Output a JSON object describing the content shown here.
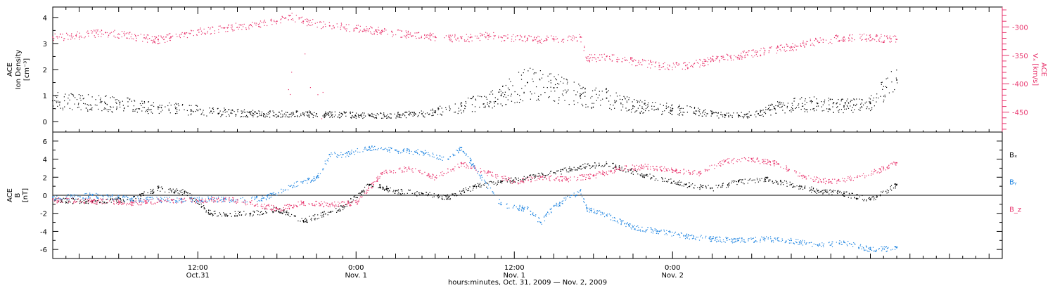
{
  "chart_data": [
    {
      "type": "scatter",
      "title": "",
      "ylabel_left": [
        "ACE",
        "Ion Density",
        "[cm⁻³]"
      ],
      "ylabel_right": [
        "ACE",
        "Vₓ [km/s]"
      ],
      "ylim_left": [
        -0.4,
        4.4
      ],
      "yticks_left": [
        "0",
        "1",
        "2",
        "3",
        "4"
      ],
      "ylim_right": [
        -485,
        -265
      ],
      "yticks_right": [
        "-300",
        "-350",
        "-400",
        "-450"
      ],
      "colors": {
        "density": "#000000",
        "vx": "#e8336c"
      },
      "series": [
        {
          "name": "",
          "key": "density",
          "x": [
            0,
            4,
            8,
            12,
            16,
            20,
            24,
            28,
            31,
            34,
            36,
            38,
            40,
            42,
            44,
            47,
            50,
            51,
            52,
            53.5,
            55,
            58,
            60,
            62,
            64
          ],
          "y": [
            0.8,
            0.7,
            0.55,
            0.4,
            0.3,
            0.3,
            0.25,
            0.3,
            0.6,
            1.0,
            1.5,
            1.3,
            1.0,
            0.9,
            0.6,
            0.5,
            0.3,
            0.25,
            0.25,
            0.3,
            0.6,
            0.7,
            0.6,
            0.7,
            1.6
          ]
        },
        {
          "name": "",
          "key": "vx",
          "x": [
            0,
            4,
            8,
            10,
            13,
            15,
            17,
            18,
            19,
            21,
            23,
            25,
            27,
            29,
            31,
            33,
            34,
            36,
            38,
            40,
            40.5,
            42,
            44,
            46,
            48,
            50,
            52,
            54,
            56,
            58,
            60,
            62,
            64
          ],
          "y": [
            -318,
            -310,
            -322,
            -312,
            -302,
            -296,
            -290,
            -280,
            -290,
            -298,
            -302,
            -308,
            -313,
            -318,
            -320,
            -315,
            -318,
            -320,
            -322,
            -318,
            -355,
            -352,
            -360,
            -368,
            -368,
            -358,
            -350,
            -342,
            -335,
            -325,
            -318,
            -318,
            -322
          ]
        }
      ]
    },
    {
      "type": "scatter",
      "ylabel": [
        "ACE",
        "B",
        "[nT]"
      ],
      "ylim": [
        -7,
        7
      ],
      "yticks": [
        "-6",
        "-4",
        "-2",
        "0",
        "2",
        "4",
        "6"
      ],
      "zero_line": true,
      "legend_placement": "right",
      "series": [
        {
          "name": "Bₓ",
          "color": "#000000",
          "x": [
            0,
            3,
            6,
            8,
            10,
            12,
            15,
            17,
            19,
            22,
            24,
            26,
            28,
            30,
            32,
            34,
            36,
            38,
            40,
            42,
            45,
            48,
            50,
            52,
            54,
            56,
            58,
            60,
            62,
            64
          ],
          "y": [
            -0.5,
            -0.7,
            -0.4,
            0.8,
            0.4,
            -2.0,
            -2.0,
            -1.5,
            -2.8,
            -1.3,
            1.2,
            0.5,
            0.2,
            -0.2,
            1.0,
            1.5,
            2.0,
            2.5,
            3.2,
            3.5,
            2.2,
            1.2,
            0.8,
            1.5,
            1.8,
            1.2,
            0.5,
            0.2,
            -0.5,
            1.2
          ]
        },
        {
          "name": "Bᵧ",
          "color": "#1a82e0",
          "x": [
            0,
            3,
            6,
            9,
            12,
            14,
            16,
            18,
            20,
            21,
            22,
            24,
            26,
            28,
            30,
            31,
            32,
            34,
            36,
            37,
            38,
            40,
            40.5,
            42,
            44,
            46,
            48,
            50,
            52,
            54,
            56,
            58,
            60,
            62,
            64
          ],
          "y": [
            -0.2,
            0.0,
            -0.4,
            -0.5,
            -0.4,
            -0.5,
            -0.3,
            1.0,
            2.0,
            4.5,
            4.5,
            5.3,
            5.0,
            4.8,
            4.0,
            5.3,
            3.0,
            -1.0,
            -1.5,
            -3.0,
            -1.2,
            0.5,
            -1.5,
            -2.2,
            -3.5,
            -4.0,
            -4.5,
            -4.8,
            -5.0,
            -4.8,
            -5.0,
            -5.5,
            -5.2,
            -6.0,
            -5.8
          ]
        },
        {
          "name": "B_z",
          "color": "#e8336c",
          "x": [
            0,
            3,
            6,
            9,
            11,
            13,
            15,
            17,
            19,
            21,
            23,
            25,
            27,
            29,
            31,
            33,
            35,
            37,
            39,
            41,
            43,
            45,
            47,
            49,
            51,
            53,
            55,
            57,
            59,
            61,
            63,
            64
          ],
          "y": [
            -0.5,
            -0.6,
            -0.8,
            -0.5,
            -0.6,
            -0.4,
            -0.8,
            -1.5,
            -0.8,
            -1.0,
            -0.8,
            2.5,
            3.0,
            2.0,
            3.5,
            2.5,
            1.5,
            2.0,
            1.8,
            2.2,
            3.0,
            3.2,
            2.8,
            2.5,
            3.8,
            4.0,
            3.5,
            2.0,
            1.5,
            2.0,
            3.0,
            3.6
          ]
        }
      ]
    },
    {
      "type": "axis",
      "xlabel": "hours:minutes, Oct. 31, 2009 — Nov. 2, 2009",
      "xlim_hours": [
        0,
        72
      ],
      "major_ticks": [
        {
          "x": 11,
          "time": "12:00",
          "date": "Oct.31"
        },
        {
          "x": 23,
          "time": "0:00",
          "date": "Nov. 1"
        },
        {
          "x": 35,
          "time": "12:00",
          "date": "Nov. 1"
        },
        {
          "x": 47,
          "time": "0:00",
          "date": "Nov. 2"
        }
      ]
    }
  ]
}
